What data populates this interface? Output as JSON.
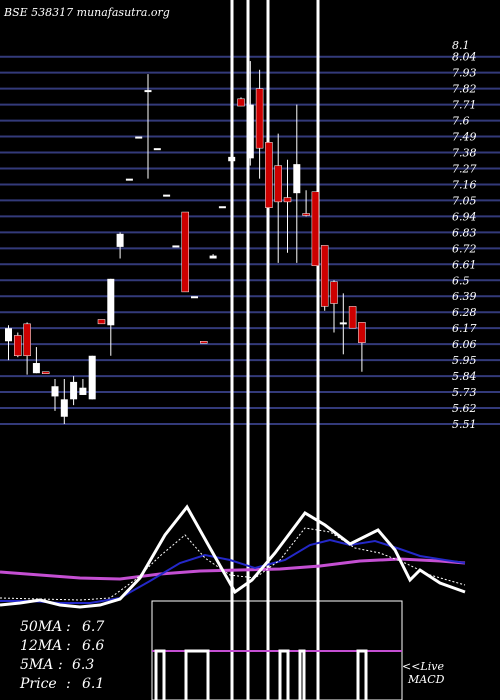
{
  "header": {
    "title": "BSE 538317 munafasutra.org"
  },
  "chart_data": {
    "type": "candlestick",
    "title": "BSE 538317 munafasutra.org",
    "price_axis": {
      "labels": [
        "8.1",
        "8.04",
        "7.93",
        "7.82",
        "7.71",
        "7.6",
        "7.49",
        "7.38",
        "7.27",
        "7.16",
        "7.05",
        "6.94",
        "6.83",
        "6.72",
        "6.61",
        "6.5",
        "6.39",
        "6.28",
        "6.17",
        "6.06",
        "5.95",
        "5.84",
        "5.73",
        "5.62",
        "5.51"
      ],
      "range": [
        5.51,
        8.1
      ]
    },
    "candles": [
      {
        "o": 6.17,
        "h": 6.19,
        "l": 5.95,
        "c": 6.08,
        "color": "white"
      },
      {
        "o": 6.12,
        "h": 6.14,
        "l": 5.97,
        "c": 5.98,
        "color": "red"
      },
      {
        "o": 6.2,
        "h": 6.21,
        "l": 5.85,
        "c": 5.98,
        "color": "red"
      },
      {
        "o": 5.93,
        "h": 6.04,
        "l": 5.86,
        "c": 5.86,
        "color": "white"
      },
      {
        "o": 5.87,
        "h": 5.87,
        "l": 5.86,
        "c": 5.86,
        "color": "red"
      },
      {
        "o": 5.77,
        "h": 5.82,
        "l": 5.6,
        "c": 5.7,
        "color": "white"
      },
      {
        "o": 5.68,
        "h": 5.82,
        "l": 5.51,
        "c": 5.56,
        "color": "white"
      },
      {
        "o": 5.8,
        "h": 5.84,
        "l": 5.64,
        "c": 5.68,
        "color": "white"
      },
      {
        "o": 5.76,
        "h": 5.82,
        "l": 5.71,
        "c": 5.71,
        "color": "white"
      },
      {
        "o": 5.98,
        "h": 5.98,
        "l": 5.68,
        "c": 5.68,
        "color": "white"
      },
      {
        "o": 6.23,
        "h": 6.23,
        "l": 6.2,
        "c": 6.2,
        "color": "red"
      },
      {
        "o": 6.19,
        "h": 6.51,
        "l": 5.98,
        "c": 6.51,
        "color": "white"
      },
      {
        "o": 6.82,
        "h": 6.83,
        "l": 6.65,
        "c": 6.73,
        "color": "white"
      },
      {
        "o": 7.2,
        "h": 7.2,
        "l": 7.2,
        "c": 7.2,
        "color": "white"
      },
      {
        "o": 7.49,
        "h": 7.49,
        "l": 7.49,
        "c": 7.49,
        "color": "white"
      },
      {
        "o": 7.81,
        "h": 7.92,
        "l": 7.2,
        "c": 7.81,
        "color": "white"
      },
      {
        "o": 7.41,
        "h": 7.41,
        "l": 7.41,
        "c": 7.41,
        "color": "white"
      },
      {
        "o": 7.09,
        "h": 7.09,
        "l": 7.09,
        "c": 7.09,
        "color": "white"
      },
      {
        "o": 6.74,
        "h": 6.74,
        "l": 6.74,
        "c": 6.74,
        "color": "white"
      },
      {
        "o": 6.97,
        "h": 6.97,
        "l": 6.42,
        "c": 6.42,
        "color": "red"
      },
      {
        "o": 6.39,
        "h": 6.39,
        "l": 6.39,
        "c": 6.39,
        "color": "white"
      },
      {
        "o": 6.08,
        "h": 6.08,
        "l": 6.08,
        "c": 6.08,
        "color": "red"
      },
      {
        "o": 6.67,
        "h": 6.68,
        "l": 6.65,
        "c": 6.65,
        "color": "white"
      },
      {
        "o": 7.01,
        "h": 7.01,
        "l": 7.01,
        "c": 7.01,
        "color": "white"
      },
      {
        "o": 7.35,
        "h": 7.36,
        "l": 7.32,
        "c": 7.32,
        "color": "white"
      },
      {
        "o": 7.75,
        "h": 7.76,
        "l": 7.7,
        "c": 7.7,
        "color": "red"
      },
      {
        "o": 7.71,
        "h": 8.01,
        "l": 7.29,
        "c": 7.34,
        "color": "white"
      },
      {
        "o": 7.82,
        "h": 7.95,
        "l": 7.2,
        "c": 7.41,
        "color": "red"
      },
      {
        "o": 7.45,
        "h": 7.57,
        "l": 6.96,
        "c": 7.0,
        "color": "red"
      },
      {
        "o": 7.29,
        "h": 7.51,
        "l": 6.62,
        "c": 7.04,
        "color": "red"
      },
      {
        "o": 7.07,
        "h": 7.33,
        "l": 6.69,
        "c": 7.04,
        "color": "red"
      },
      {
        "o": 7.3,
        "h": 7.71,
        "l": 6.62,
        "c": 7.1,
        "color": "white"
      },
      {
        "o": 6.96,
        "h": 7.12,
        "l": 6.94,
        "c": 6.96,
        "color": "red"
      },
      {
        "o": 7.11,
        "h": 7.11,
        "l": 6.6,
        "c": 6.6,
        "color": "red"
      },
      {
        "o": 6.74,
        "h": 6.74,
        "l": 6.29,
        "c": 6.32,
        "color": "red"
      },
      {
        "o": 6.49,
        "h": 6.5,
        "l": 6.14,
        "c": 6.34,
        "color": "red"
      },
      {
        "o": 6.21,
        "h": 6.41,
        "l": 5.99,
        "c": 6.21,
        "color": "white"
      },
      {
        "o": 6.32,
        "h": 6.32,
        "l": 6.17,
        "c": 6.17,
        "color": "red"
      },
      {
        "o": 6.21,
        "h": 6.21,
        "l": 5.87,
        "c": 6.07,
        "color": "red"
      }
    ],
    "indicator_lines": [
      {
        "name": "50MA",
        "color": "#c44fd2"
      },
      {
        "name": "12MA",
        "color": "#2428c8"
      },
      {
        "name": "5MA",
        "color": "#ffffff"
      },
      {
        "name": "Price",
        "color": "#ffffff"
      }
    ],
    "stats": [
      {
        "label": "50MA",
        "value": "6.7"
      },
      {
        "label": "12MA",
        "value": "6.6"
      },
      {
        "label": "5MA",
        "value": "6.3"
      },
      {
        "label": "Price",
        "value": "6.1"
      }
    ],
    "macd_label": "<<Live MACD",
    "colors": {
      "up": "#ffffff",
      "down": "#cc0000",
      "grid": "#333a7a",
      "ma50": "#c44fd2",
      "ma12": "#2428c8",
      "text": "#ffffff"
    }
  }
}
